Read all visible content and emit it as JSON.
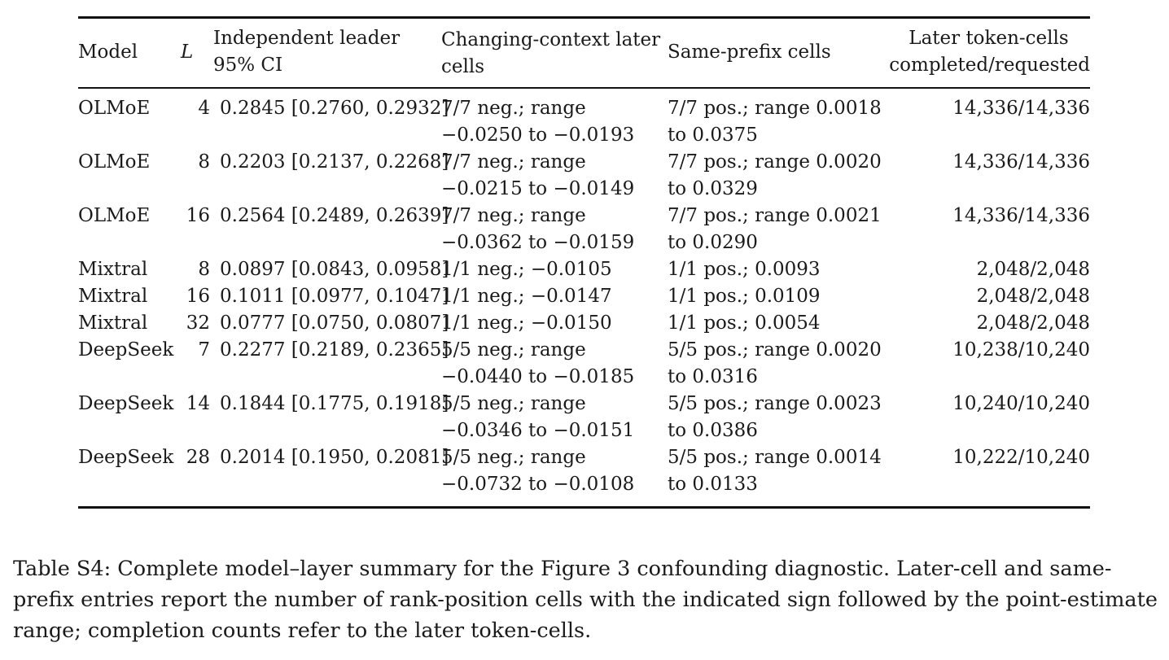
{
  "table": {
    "headers": {
      "model": "Model",
      "layer": "L",
      "ci_line1": "Independent leader",
      "ci_line2": "95% CI",
      "changing_line1": "Changing-context later",
      "changing_line2": "cells",
      "same_prefix": "Same-prefix cells",
      "count_line1": "Later token-cells",
      "count_line2": "completed/requested"
    },
    "rows": [
      {
        "model": "OLMoE",
        "layer": "4",
        "ci": "0.2845 [0.2760, 0.2932]",
        "changing_1": "7/7 neg.; range",
        "changing_2": "−0.0250 to −0.0193",
        "same_1": "7/7 pos.; range 0.0018",
        "same_2": "to 0.0375",
        "count": "14,336/14,336"
      },
      {
        "model": "OLMoE",
        "layer": "8",
        "ci": "0.2203 [0.2137, 0.2268]",
        "changing_1": "7/7 neg.; range",
        "changing_2": "−0.0215 to −0.0149",
        "same_1": "7/7 pos.; range 0.0020",
        "same_2": "to 0.0329",
        "count": "14,336/14,336"
      },
      {
        "model": "OLMoE",
        "layer": "16",
        "ci": "0.2564 [0.2489, 0.2639]",
        "changing_1": "7/7 neg.; range",
        "changing_2": "−0.0362 to −0.0159",
        "same_1": "7/7 pos.; range 0.0021",
        "same_2": "to 0.0290",
        "count": "14,336/14,336"
      },
      {
        "model": "Mixtral",
        "layer": "8",
        "ci": "0.0897 [0.0843, 0.0958]",
        "changing_1": "1/1 neg.; −0.0105",
        "changing_2": "",
        "same_1": "1/1 pos.; 0.0093",
        "same_2": "",
        "count": "2,048/2,048"
      },
      {
        "model": "Mixtral",
        "layer": "16",
        "ci": "0.1011 [0.0977, 0.1047]",
        "changing_1": "1/1 neg.; −0.0147",
        "changing_2": "",
        "same_1": "1/1 pos.; 0.0109",
        "same_2": "",
        "count": "2,048/2,048"
      },
      {
        "model": "Mixtral",
        "layer": "32",
        "ci": "0.0777 [0.0750, 0.0807]",
        "changing_1": "1/1 neg.; −0.0150",
        "changing_2": "",
        "same_1": "1/1 pos.; 0.0054",
        "same_2": "",
        "count": "2,048/2,048"
      },
      {
        "model": "DeepSeek",
        "layer": "7",
        "ci": "0.2277 [0.2189, 0.2365]",
        "changing_1": "5/5 neg.; range",
        "changing_2": "−0.0440 to −0.0185",
        "same_1": "5/5 pos.; range 0.0020",
        "same_2": "to 0.0316",
        "count": "10,238/10,240"
      },
      {
        "model": "DeepSeek",
        "layer": "14",
        "ci": "0.1844 [0.1775, 0.1918]",
        "changing_1": "5/5 neg.; range",
        "changing_2": "−0.0346 to −0.0151",
        "same_1": "5/5 pos.; range 0.0023",
        "same_2": "to 0.0386",
        "count": "10,240/10,240"
      },
      {
        "model": "DeepSeek",
        "layer": "28",
        "ci": "0.2014 [0.1950, 0.2081]",
        "changing_1": "5/5 neg.; range",
        "changing_2": "−0.0732 to −0.0108",
        "same_1": "5/5 pos.; range 0.0014",
        "same_2": "to 0.0133",
        "count": "10,222/10,240"
      }
    ]
  },
  "caption": "Table S4: Complete model–layer summary for the Figure 3 confounding diagnostic. Later-cell and same-prefix entries report the number of rank-position cells with the indicated sign followed by the point-estimate range; completion counts refer to the later token-cells."
}
